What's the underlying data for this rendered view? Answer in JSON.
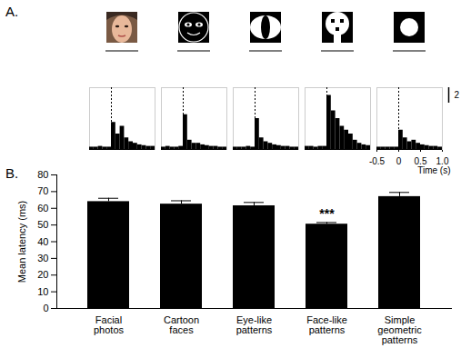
{
  "chart_data": [
    {
      "type": "histogram",
      "title": "A.",
      "bins": [
        -0.5,
        -0.4,
        -0.3,
        -0.2,
        -0.1,
        0,
        0.1,
        0.2,
        0.3,
        0.4,
        0.5,
        0.6,
        0.7,
        0.8,
        0.9,
        1.0
      ],
      "values": [
        0.3,
        0.3,
        0.4,
        0.3,
        0.3,
        3.5,
        2.0,
        3.0,
        1.5,
        1.0,
        0.8,
        0.6,
        0.5,
        0.4,
        0.4
      ],
      "stimulus_onset": 0,
      "color": "#000000",
      "xlim": [
        -0.5,
        1.0
      ],
      "ylim": [
        0,
        8
      ],
      "tick_labels": false
    },
    {
      "type": "histogram",
      "bins": [
        -0.5,
        -0.4,
        -0.3,
        -0.2,
        -0.1,
        0,
        0.1,
        0.2,
        0.3,
        0.4,
        0.5,
        0.6,
        0.7,
        0.8,
        0.9,
        1.0
      ],
      "values": [
        0.3,
        0.4,
        0.3,
        0.3,
        0.4,
        4.5,
        1.2,
        0.8,
        0.8,
        0.6,
        0.5,
        0.4,
        0.4,
        0.3,
        0.3
      ],
      "stimulus_onset": 0,
      "color": "#000000",
      "xlim": [
        -0.5,
        1.0
      ],
      "ylim": [
        0,
        8
      ],
      "tick_labels": false
    },
    {
      "type": "histogram",
      "bins": [
        -0.5,
        -0.4,
        -0.3,
        -0.2,
        -0.1,
        0,
        0.1,
        0.2,
        0.3,
        0.4,
        0.5,
        0.6,
        0.7,
        0.8,
        0.9,
        1.0
      ],
      "values": [
        0.3,
        0.3,
        0.3,
        0.4,
        0.3,
        4.0,
        1.5,
        1.0,
        0.8,
        0.6,
        0.5,
        0.4,
        0.4,
        0.3,
        0.3
      ],
      "stimulus_onset": 0,
      "color": "#000000",
      "xlim": [
        -0.5,
        1.0
      ],
      "ylim": [
        0,
        8
      ],
      "tick_labels": false
    },
    {
      "type": "histogram",
      "bins": [
        -0.5,
        -0.4,
        -0.3,
        -0.2,
        -0.1,
        0,
        0.1,
        0.2,
        0.3,
        0.4,
        0.5,
        0.6,
        0.7,
        0.8,
        0.9,
        1.0
      ],
      "values": [
        0.4,
        0.4,
        0.3,
        0.4,
        0.4,
        7.0,
        5.0,
        4.0,
        3.0,
        2.5,
        2.0,
        1.2,
        0.8,
        0.6,
        0.5
      ],
      "stimulus_onset": 0,
      "color": "#000000",
      "xlim": [
        -0.5,
        1.0
      ],
      "ylim": [
        0,
        8
      ],
      "tick_labels": false
    },
    {
      "type": "histogram",
      "xlabel": "Time (s)",
      "bins": [
        -0.5,
        -0.4,
        -0.3,
        -0.2,
        -0.1,
        0,
        0.1,
        0.2,
        0.3,
        0.4,
        0.5,
        0.6,
        0.7,
        0.8,
        0.9,
        1.0
      ],
      "values": [
        0.3,
        0.3,
        0.3,
        0.3,
        0.3,
        2.5,
        1.5,
        1.0,
        1.2,
        0.8,
        0.6,
        0.5,
        0.4,
        0.4,
        0.3
      ],
      "stimulus_onset": 0,
      "color": "#000000",
      "scale_bar": 2,
      "xlim": [
        -0.5,
        1.0
      ],
      "ylim": [
        0,
        8
      ],
      "xticks": [
        -0.5,
        0,
        0.5,
        {
          "value": 1.0,
          "label": "1.0"
        }
      ],
      "tick_labels": "x"
    },
    {
      "type": "bar",
      "title": "B.",
      "ylabel": "Mean latency (ms)",
      "categories": [
        "Facial\nphotos",
        "Cartoon\nfaces",
        "Eye-like\npatterns",
        "Face-like\npatterns",
        "Simple\ngeometric\npatterns"
      ],
      "values": [
        64,
        62.5,
        61.5,
        50.5,
        67
      ],
      "errors": [
        2,
        2,
        2,
        1,
        2.5
      ],
      "color": "#000000",
      "annotations": [
        {
          "category": "Face-like\npatterns",
          "text": "***"
        }
      ],
      "ylim": [
        0,
        80
      ],
      "yticks": [
        0,
        10,
        20,
        30,
        40,
        50,
        60,
        70,
        80
      ]
    }
  ]
}
